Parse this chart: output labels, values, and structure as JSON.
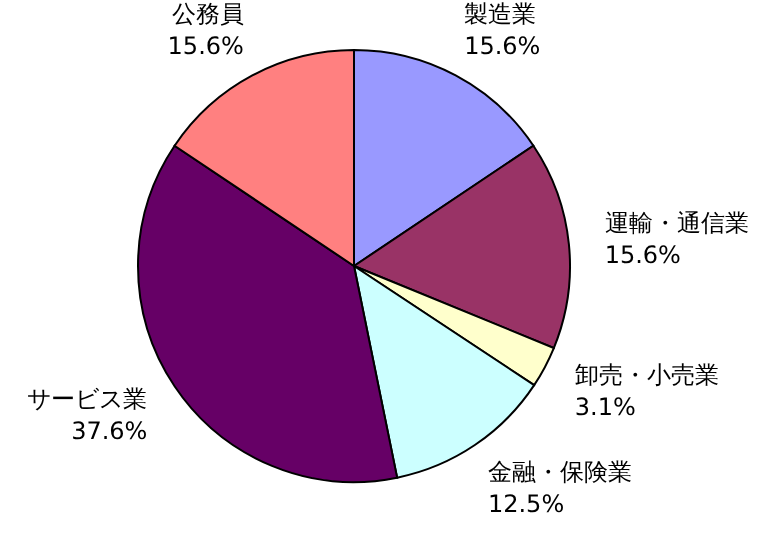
{
  "chart_data": {
    "type": "pie",
    "categories": [
      "製造業",
      "運輸・通信業",
      "卸売・小売業",
      "金融・保険業",
      "サービス業",
      "公務員"
    ],
    "values": [
      15.6,
      15.6,
      3.1,
      12.5,
      37.6,
      15.6
    ],
    "value_labels": [
      "15.6%",
      "15.6%",
      "3.1%",
      "12.5%",
      "37.6%",
      "15.6%"
    ],
    "colors": [
      "#9999ff",
      "#993366",
      "#ffffcc",
      "#ccffff",
      "#660066",
      "#ff8080"
    ]
  }
}
